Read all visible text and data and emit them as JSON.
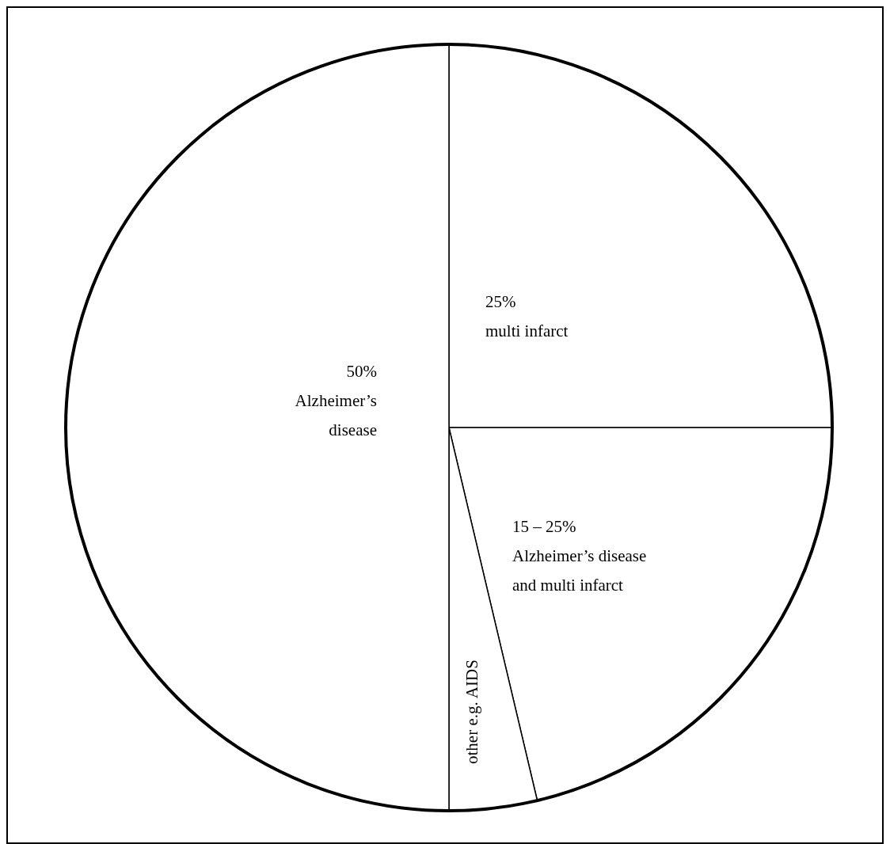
{
  "chart_data": {
    "type": "pie",
    "categories": [
      "multi infarct",
      "Alzheimer’s disease and multi infarct",
      "other e.g. AIDS",
      "Alzheimer’s disease"
    ],
    "values": [
      25,
      21.3,
      3.7,
      50
    ],
    "value_labels": [
      "25%",
      null,
      null,
      "50%"
    ],
    "annotations": [
      "15 – 25%"
    ],
    "colors": [
      "#ffffff",
      "#ffffff",
      "#ffffff",
      "#ffffff"
    ]
  }
}
